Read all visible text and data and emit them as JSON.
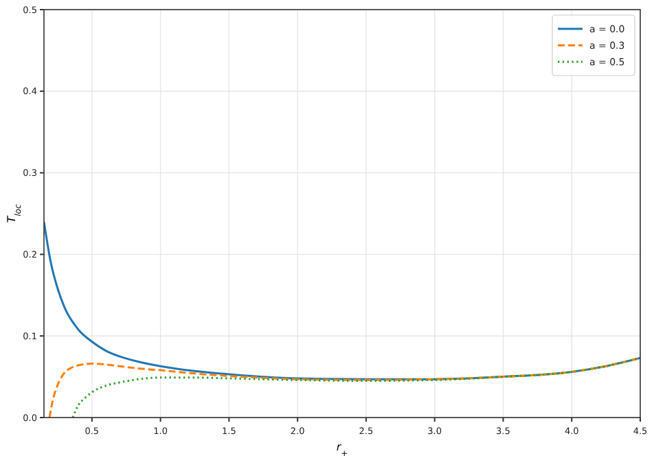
{
  "chart_data": {
    "type": "line",
    "xlabel": "r$_{+}$",
    "ylabel": "T$_{loc}$",
    "xlim": [
      0.15,
      4.5
    ],
    "ylim": [
      0,
      0.5
    ],
    "xticks": [
      0.5,
      {
        "value": 1,
        "label": "1.0"
      },
      1.5,
      {
        "value": 2,
        "label": "2.0"
      },
      2.5,
      {
        "value": 3,
        "label": "3.0"
      },
      3.5,
      {
        "value": 4,
        "label": "4.0"
      },
      4.5
    ],
    "yticks": [
      {
        "value": 0,
        "label": "0.0"
      },
      0.1,
      0.2,
      0.3,
      0.4,
      0.5
    ],
    "grid": true,
    "legend": "top right",
    "series": [
      {
        "name": "a = 0.0",
        "color": "#1f77b4",
        "line_style": "solid",
        "x": [
          0.15,
          0.2,
          0.25,
          0.3,
          0.4,
          0.5,
          0.6,
          0.7,
          0.85,
          1.0,
          1.25,
          1.5,
          2.0,
          2.5,
          3.0,
          3.5,
          4.0,
          4.25,
          4.5
        ],
        "values": [
          0.24,
          0.19,
          0.158,
          0.135,
          0.108,
          0.093,
          0.082,
          0.075,
          0.068,
          0.063,
          0.057,
          0.053,
          0.048,
          0.047,
          0.047,
          0.05,
          0.056,
          0.063,
          0.073
        ]
      },
      {
        "name": "a = 0.3",
        "color": "#ff7f0e",
        "line_style": "dashed",
        "x": [
          0.19,
          0.22,
          0.25,
          0.3,
          0.35,
          0.4,
          0.5,
          0.6,
          0.7,
          0.85,
          1.0,
          1.25,
          1.5,
          2.0,
          2.5,
          3.0,
          3.5,
          4.0,
          4.25,
          4.5
        ],
        "values": [
          0,
          0.025,
          0.04,
          0.055,
          0.061,
          0.064,
          0.066,
          0.065,
          0.063,
          0.06,
          0.058,
          0.054,
          0.051,
          0.047,
          0.046,
          0.047,
          0.05,
          0.056,
          0.063,
          0.073
        ]
      },
      {
        "name": "a = 0.5",
        "color": "#2ca02c",
        "line_style": "dotted",
        "x": [
          0.36,
          0.4,
          0.45,
          0.5,
          0.6,
          0.7,
          0.8,
          1.0,
          1.25,
          1.5,
          2.0,
          2.5,
          3.0,
          3.5,
          4.0,
          4.25,
          4.5
        ],
        "values": [
          0,
          0.015,
          0.024,
          0.031,
          0.039,
          0.043,
          0.046,
          0.049,
          0.049,
          0.048,
          0.046,
          0.045,
          0.046,
          0.05,
          0.056,
          0.063,
          0.073
        ]
      }
    ]
  }
}
